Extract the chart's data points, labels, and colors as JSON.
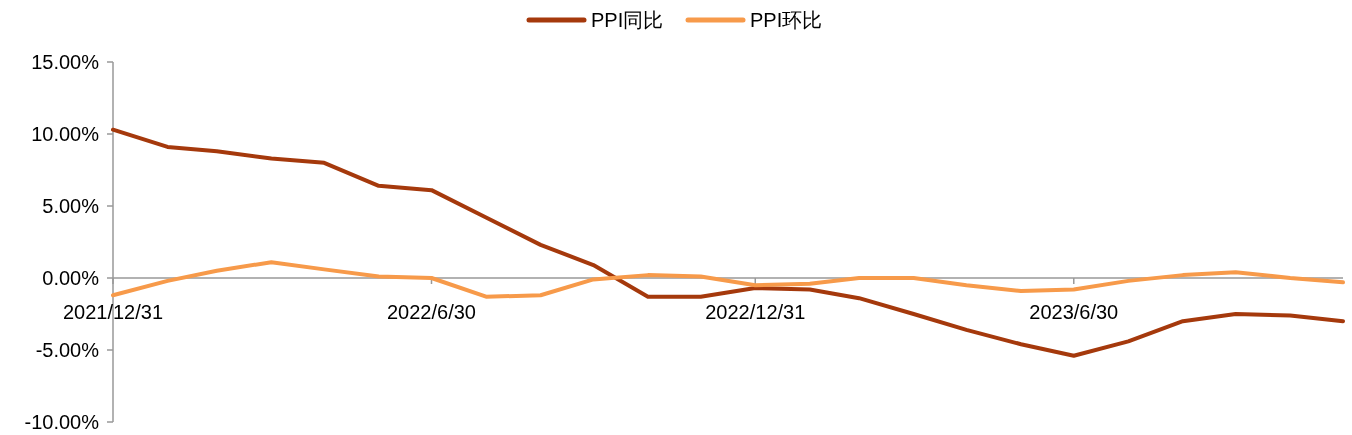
{
  "chart_data": {
    "type": "line",
    "x": [
      "2021-12-31",
      "2022-01-31",
      "2022-02-28",
      "2022-03-31",
      "2022-04-30",
      "2022-05-31",
      "2022-06-30",
      "2022-07-31",
      "2022-08-31",
      "2022-09-30",
      "2022-10-31",
      "2022-11-30",
      "2022-12-31",
      "2023-01-31",
      "2023-02-28",
      "2023-03-31",
      "2023-04-30",
      "2023-05-31",
      "2023-06-30",
      "2023-07-31",
      "2023-08-31",
      "2023-09-30",
      "2023-10-31",
      "2023-11-30"
    ],
    "series": [
      {
        "name": "PPI同比",
        "color": "#a5390c",
        "values": [
          10.3,
          9.1,
          8.8,
          8.3,
          8.0,
          6.4,
          6.1,
          4.2,
          2.3,
          0.9,
          -1.3,
          -1.3,
          -0.7,
          -0.8,
          -1.4,
          -2.5,
          -3.6,
          -4.6,
          -5.4,
          -4.4,
          -3.0,
          -2.5,
          -2.6,
          -3.0
        ]
      },
      {
        "name": "PPI环比",
        "color": "#f79a4a",
        "values": [
          -1.2,
          -0.2,
          0.5,
          1.1,
          0.6,
          0.1,
          0.0,
          -1.3,
          -1.2,
          -0.1,
          0.2,
          0.1,
          -0.5,
          -0.4,
          0.0,
          0.0,
          -0.5,
          -0.9,
          -0.8,
          -0.2,
          0.2,
          0.4,
          0.0,
          -0.3
        ]
      }
    ],
    "xlim": [
      "2021-12-31",
      "2023-11-30"
    ],
    "xticks": [
      {
        "value": "2021-12-31",
        "label": "2021/12/31"
      },
      {
        "value": "2022-06-30",
        "label": "2022/6/30"
      },
      {
        "value": "2022-12-31",
        "label": "2022/12/31"
      },
      {
        "value": "2023-06-30",
        "label": "2023/6/30"
      }
    ],
    "ylim": [
      -10,
      15
    ],
    "yticks": [
      {
        "value": -10,
        "label": "-10.00%"
      },
      {
        "value": -5,
        "label": "-5.00%"
      },
      {
        "value": 0,
        "label": "0.00%"
      },
      {
        "value": 5,
        "label": "5.00%"
      },
      {
        "value": 10,
        "label": "10.00%"
      },
      {
        "value": 15,
        "label": "15.00%"
      }
    ],
    "grid": false,
    "legend": "top",
    "marker": "none",
    "line_style": "solid"
  }
}
